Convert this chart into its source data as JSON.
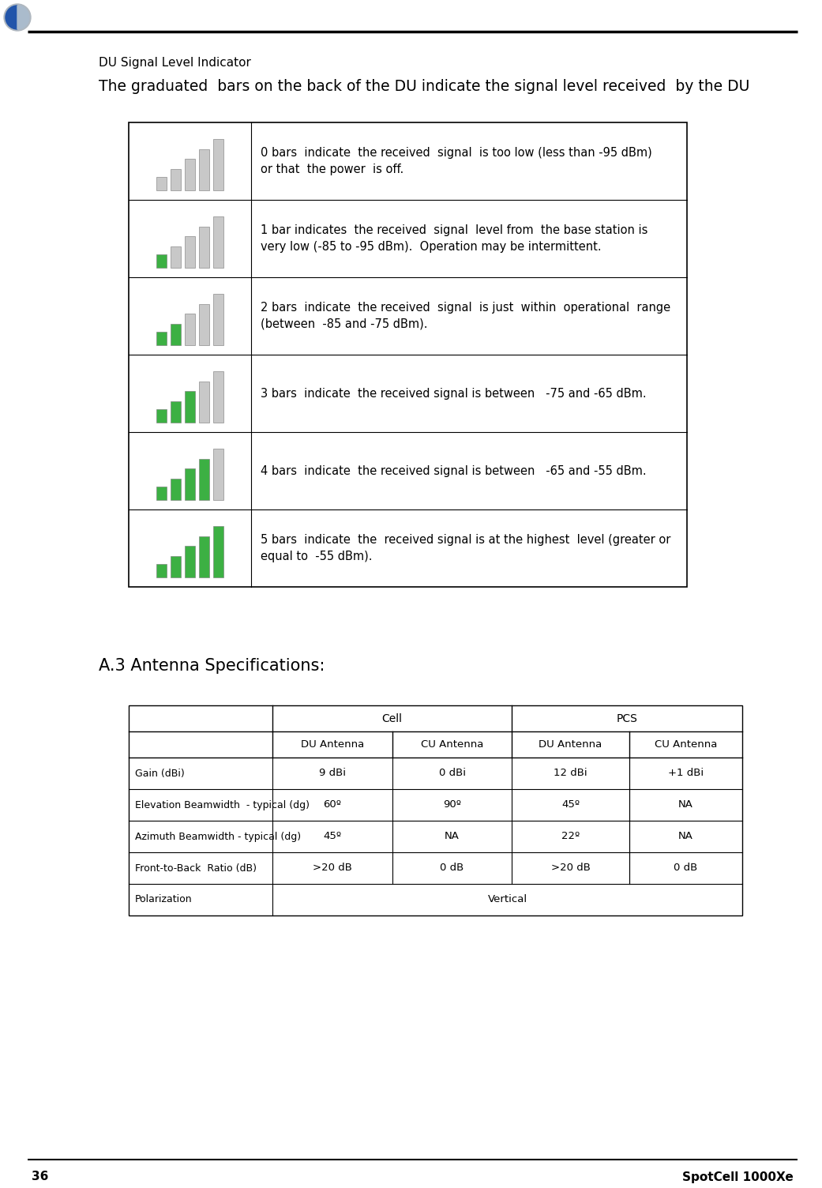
{
  "page_number": "36",
  "brand": "SpotCell 1000Xe",
  "section_title": "DU Signal Level Indicator",
  "section_subtitle": "The graduated  bars on the back of the DU indicate the signal level received  by the DU",
  "signal_rows": [
    {
      "green_bars": 0,
      "text": "0 bars  indicate  the received  signal  is too low (less than -95 dBm)\nor that  the power  is off."
    },
    {
      "green_bars": 1,
      "text": "1 bar indicates  the received  signal  level from  the base station is\nvery low (-85 to -95 dBm).  Operation may be intermittent."
    },
    {
      "green_bars": 2,
      "text": "2 bars  indicate  the received  signal  is just  within  operational  range\n(between  -85 and -75 dBm)."
    },
    {
      "green_bars": 3,
      "text": "3 bars  indicate  the received signal is between   -75 and -65 dBm."
    },
    {
      "green_bars": 4,
      "text": "4 bars  indicate  the received signal is between   -65 and -55 dBm."
    },
    {
      "green_bars": 5,
      "text": "5 bars  indicate  the  received signal is at the highest  level (greater or\nequal to  -55 dBm)."
    }
  ],
  "antenna_title": "A.3 Antenna Specifications:",
  "table_rows": [
    [
      "Gain (dBi)",
      "9 dBi",
      "0 dBi",
      "12 dBi",
      "+1 dBi"
    ],
    [
      "Elevation Beamwidth  - typical (dg)",
      "60º",
      "90º",
      "45º",
      "NA"
    ],
    [
      "Azimuth Beamwidth - typical (dg)",
      "45º",
      "NA",
      "22º",
      "NA"
    ],
    [
      "Front-to-Back  Ratio (dB)",
      ">20 dB",
      "0 dB",
      ">20 dB",
      "0 dB"
    ],
    [
      "Polarization",
      "Vertical",
      "",
      "",
      ""
    ]
  ],
  "bg_color": "#ffffff",
  "text_color": "#000000",
  "green_color": "#3cb043",
  "gray_color": "#c8c8c8",
  "table_border_color": "#000000",
  "line_color": "#000000"
}
